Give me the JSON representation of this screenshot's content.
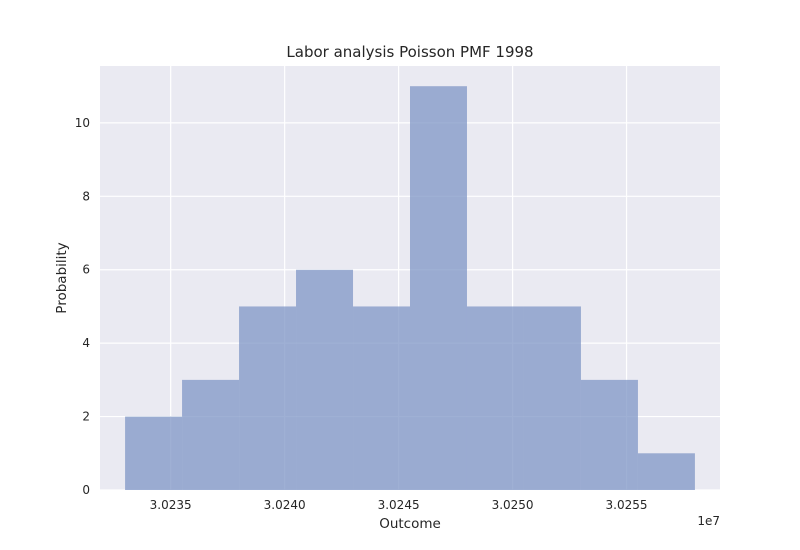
{
  "chart_data": {
    "type": "bar",
    "title": "Labor analysis Poisson PMF 1998",
    "xlabel": "Outcome",
    "ylabel": "Probability",
    "x_offset_label": "1e7",
    "bins": [
      {
        "x0": 3.0233,
        "x1": 3.02355,
        "value": 2
      },
      {
        "x0": 3.02355,
        "x1": 3.0238,
        "value": 3
      },
      {
        "x0": 3.0238,
        "x1": 3.02405,
        "value": 5
      },
      {
        "x0": 3.02405,
        "x1": 3.0243,
        "value": 6
      },
      {
        "x0": 3.0243,
        "x1": 3.02455,
        "value": 5
      },
      {
        "x0": 3.02455,
        "x1": 3.0248,
        "value": 11
      },
      {
        "x0": 3.0248,
        "x1": 3.02505,
        "value": 5
      },
      {
        "x0": 3.02505,
        "x1": 3.0253,
        "value": 5
      },
      {
        "x0": 3.0253,
        "x1": 3.02555,
        "value": 3
      },
      {
        "x0": 3.02555,
        "x1": 3.0258,
        "value": 1
      }
    ],
    "xlim": [
      3.02319,
      3.02591
    ],
    "ylim": [
      0,
      11.55
    ],
    "xticks": [
      3.0235,
      3.024,
      3.0245,
      3.025,
      3.0255
    ],
    "xtick_labels": [
      "3.0235",
      "3.0240",
      "3.0245",
      "3.0250",
      "3.0255"
    ],
    "yticks": [
      0,
      2,
      4,
      6,
      8,
      10
    ],
    "ytick_labels": [
      "0",
      "2",
      "4",
      "6",
      "8",
      "10"
    ],
    "grid": true,
    "colors": {
      "bar": "#7f96c6",
      "plot_background": "#eaeaf2",
      "grid": "#ffffff"
    }
  }
}
